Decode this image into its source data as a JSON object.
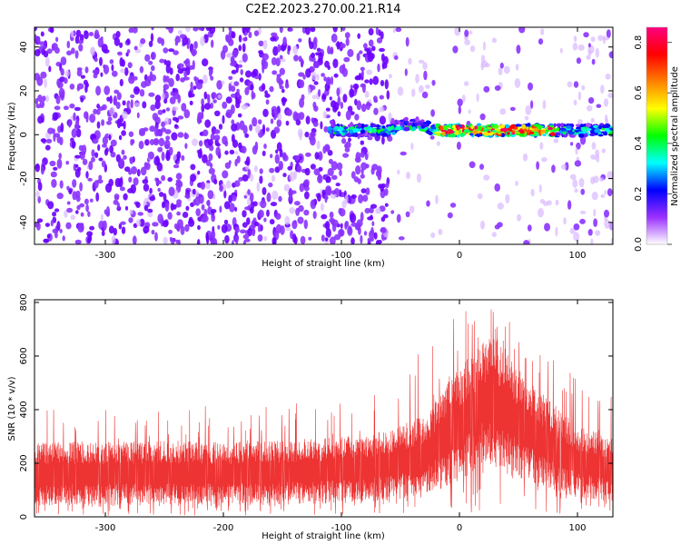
{
  "title": "C2E2.2023.270.00.21.R14",
  "chart_data": [
    {
      "type": "heatmap",
      "xlabel": "Height of straight line (km)",
      "ylabel": "Frequency (Hz)",
      "xlim": [
        -360,
        130
      ],
      "ylim": [
        -50,
        49
      ],
      "xticks": [
        -300,
        -200,
        -100,
        0,
        100
      ],
      "yticks": [
        -40,
        -20,
        0,
        20,
        40
      ],
      "colorbar": {
        "label": "Normalized spectral amplitude",
        "range": [
          0,
          0.86
        ],
        "ticks": [
          0.0,
          0.2,
          0.4,
          0.6,
          0.8
        ],
        "colormap": [
          "#ffffff",
          "#9b30ff",
          "#0000ff",
          "#00ffff",
          "#00ff00",
          "#ffff00",
          "#ff8000",
          "#ff0000",
          "#ff0080"
        ]
      },
      "features": {
        "noise_region_x": [
          -360,
          -60
        ],
        "quiet_region_x": [
          -60,
          90
        ],
        "echo_trace": {
          "x_start": -110,
          "x_end": 130,
          "frequency_hz": 2,
          "peak_amplitude": 0.85
        }
      }
    },
    {
      "type": "line",
      "xlabel": "Height of straight line (km)",
      "ylabel": "SNR (10 * v/v)",
      "xlim": [
        -360,
        130
      ],
      "ylim": [
        0,
        810
      ],
      "xticks": [
        -300,
        -200,
        -100,
        0,
        100
      ],
      "yticks": [
        0,
        200,
        400,
        600,
        800
      ],
      "series_color": "#ee3333",
      "envelope": {
        "x": [
          -360,
          -300,
          -250,
          -200,
          -150,
          -100,
          -60,
          -30,
          0,
          20,
          30,
          50,
          80,
          100,
          130
        ],
        "lower": [
          40,
          40,
          40,
          40,
          45,
          50,
          60,
          80,
          130,
          200,
          180,
          140,
          90,
          70,
          50
        ],
        "upper": [
          280,
          280,
          285,
          280,
          285,
          300,
          320,
          380,
          560,
          650,
          680,
          560,
          420,
          340,
          300
        ],
        "spike_max": [
          420,
          420,
          420,
          410,
          420,
          440,
          500,
          650,
          760,
          800,
          810,
          740,
          600,
          520,
          460
        ]
      }
    }
  ]
}
